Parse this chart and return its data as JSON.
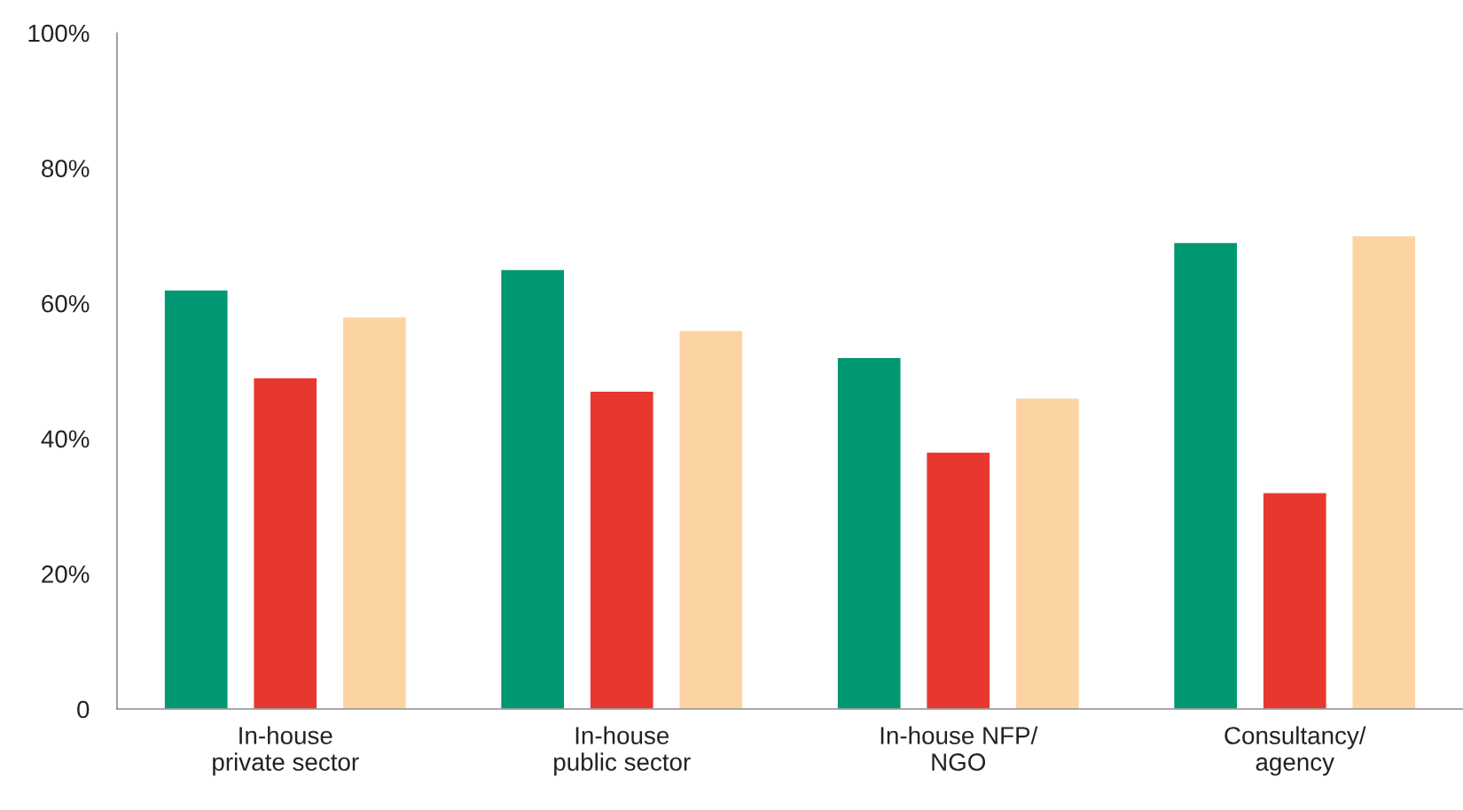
{
  "chart_data": {
    "type": "bar",
    "categories": [
      "In-house\nprivate sector",
      "In-house\npublic sector",
      "In-house NFP/\nNGO",
      "Consultancy/\nagency"
    ],
    "series": [
      {
        "color": "#009872",
        "values": [
          62,
          65,
          52,
          69
        ]
      },
      {
        "color": "#e8372e",
        "values": [
          49,
          47,
          38,
          32
        ]
      },
      {
        "color": "#fcd4a2",
        "values": [
          58,
          56,
          46,
          70
        ]
      }
    ],
    "ylim": [
      0,
      100
    ],
    "yticks": [
      {
        "value": 0,
        "label": "0"
      },
      {
        "value": 20,
        "label": "20%"
      },
      {
        "value": 40,
        "label": "40%"
      },
      {
        "value": 60,
        "label": "60%"
      },
      {
        "value": 80,
        "label": "80%"
      },
      {
        "value": 100,
        "label": "100%"
      }
    ],
    "grid": false
  }
}
